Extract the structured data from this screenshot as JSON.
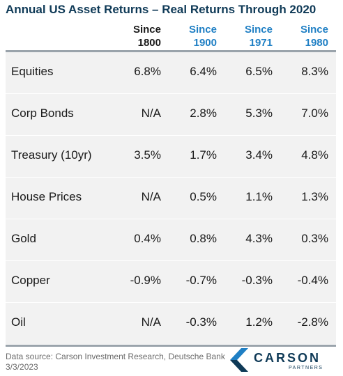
{
  "title": "Annual US Asset Returns – Real Returns Through 2020",
  "colors": {
    "title": "#0f3a57",
    "header_dark": "#1a1a1a",
    "header_accent": "#1f7fc4",
    "row_bg": "#f2f2f2",
    "rule": "#9aa3ab",
    "logo_blue": "#1f7fc4",
    "logo_navy": "#0f3a57"
  },
  "columns": [
    {
      "line1": "Since",
      "line2": "1800",
      "accent": false
    },
    {
      "line1": "Since",
      "line2": "1900",
      "accent": true
    },
    {
      "line1": "Since",
      "line2": "1971",
      "accent": true
    },
    {
      "line1": "Since",
      "line2": "1980",
      "accent": true
    }
  ],
  "chart_data": {
    "type": "table",
    "title": "Annual US Asset Returns – Real Returns Through 2020",
    "columns": [
      "Since 1800",
      "Since 1900",
      "Since 1971",
      "Since 1980"
    ],
    "rows": [
      {
        "label": "Equities",
        "values": [
          "6.8%",
          "6.4%",
          "6.5%",
          "8.3%"
        ]
      },
      {
        "label": "Corp Bonds",
        "values": [
          "N/A",
          "2.8%",
          "5.3%",
          "7.0%"
        ]
      },
      {
        "label": "Treasury (10yr)",
        "values": [
          "3.5%",
          "1.7%",
          "3.4%",
          "4.8%"
        ]
      },
      {
        "label": "House Prices",
        "values": [
          "N/A",
          "0.5%",
          "1.1%",
          "1.3%"
        ]
      },
      {
        "label": "Gold",
        "values": [
          "0.4%",
          "0.8%",
          "4.3%",
          "0.3%"
        ]
      },
      {
        "label": "Copper",
        "values": [
          "-0.9%",
          "-0.7%",
          "-0.3%",
          "-0.4%"
        ]
      },
      {
        "label": "Oil",
        "values": [
          "N/A",
          "-0.3%",
          "1.2%",
          "-2.8%"
        ]
      }
    ]
  },
  "footer": {
    "source": "Data source: Carson Investment Research, Deutsche Bank",
    "date": "3/3/2023"
  },
  "logo": {
    "name": "CARSON",
    "sub": "PARTNERS",
    "icon": "carson-chevron-icon"
  }
}
